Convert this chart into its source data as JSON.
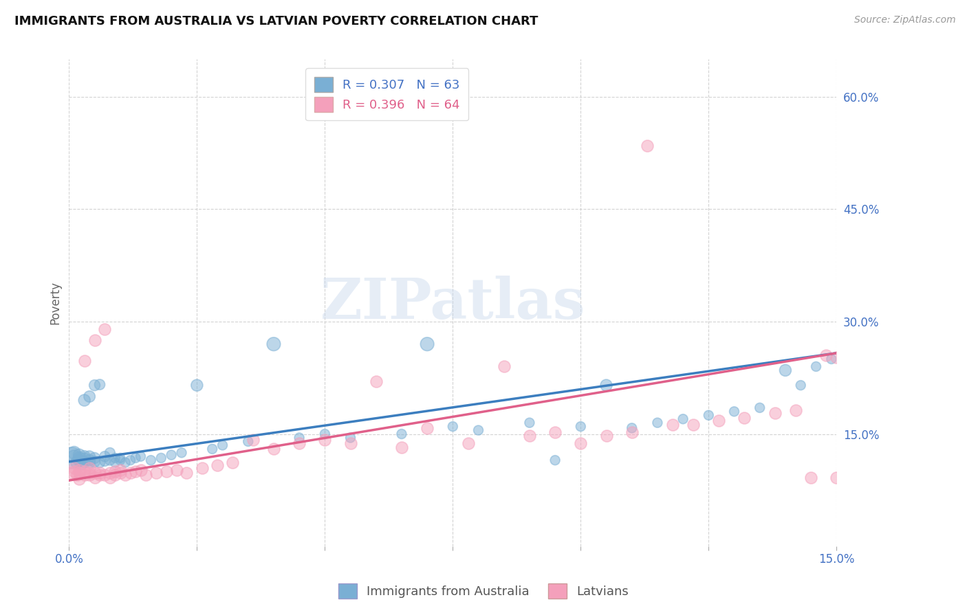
{
  "title": "IMMIGRANTS FROM AUSTRALIA VS LATVIAN POVERTY CORRELATION CHART",
  "source": "Source: ZipAtlas.com",
  "ylabel": "Poverty",
  "xmin": 0.0,
  "xmax": 0.15,
  "ymin": 0.0,
  "ymax": 0.65,
  "yticks": [
    0.15,
    0.3,
    0.45,
    0.6
  ],
  "ytick_labels": [
    "15.0%",
    "30.0%",
    "45.0%",
    "60.0%"
  ],
  "xticks": [
    0.0,
    0.15
  ],
  "xtick_labels": [
    "0.0%",
    "15.0%"
  ],
  "blue_R": 0.307,
  "blue_N": 63,
  "pink_R": 0.396,
  "pink_N": 64,
  "blue_color": "#7aafd4",
  "pink_color": "#f4a0bb",
  "blue_line_color": "#3c7ebf",
  "pink_line_color": "#e0608a",
  "blue_legend_color": "#4472c4",
  "watermark": "ZIPatlas",
  "blue_scatter_x": [
    0.0005,
    0.001,
    0.001,
    0.0015,
    0.002,
    0.002,
    0.002,
    0.0025,
    0.003,
    0.003,
    0.003,
    0.003,
    0.004,
    0.004,
    0.004,
    0.004,
    0.005,
    0.005,
    0.005,
    0.006,
    0.006,
    0.007,
    0.007,
    0.008,
    0.008,
    0.009,
    0.009,
    0.01,
    0.01,
    0.011,
    0.012,
    0.013,
    0.014,
    0.016,
    0.018,
    0.02,
    0.022,
    0.025,
    0.028,
    0.03,
    0.035,
    0.04,
    0.045,
    0.05,
    0.055,
    0.065,
    0.07,
    0.075,
    0.08,
    0.09,
    0.095,
    0.1,
    0.105,
    0.11,
    0.115,
    0.12,
    0.125,
    0.13,
    0.135,
    0.14,
    0.143,
    0.146,
    0.149
  ],
  "blue_scatter_y": [
    0.118,
    0.12,
    0.125,
    0.112,
    0.115,
    0.118,
    0.122,
    0.11,
    0.113,
    0.117,
    0.12,
    0.195,
    0.112,
    0.115,
    0.12,
    0.2,
    0.113,
    0.118,
    0.215,
    0.112,
    0.216,
    0.114,
    0.12,
    0.115,
    0.125,
    0.112,
    0.118,
    0.115,
    0.118,
    0.112,
    0.115,
    0.118,
    0.12,
    0.115,
    0.118,
    0.122,
    0.125,
    0.215,
    0.13,
    0.135,
    0.14,
    0.27,
    0.145,
    0.15,
    0.145,
    0.15,
    0.27,
    0.16,
    0.155,
    0.165,
    0.115,
    0.16,
    0.215,
    0.158,
    0.165,
    0.17,
    0.175,
    0.18,
    0.185,
    0.235,
    0.215,
    0.24,
    0.25
  ],
  "blue_scatter_size": [
    500,
    180,
    180,
    160,
    160,
    160,
    160,
    150,
    150,
    150,
    150,
    150,
    140,
    140,
    140,
    140,
    130,
    130,
    130,
    120,
    120,
    120,
    120,
    110,
    110,
    100,
    100,
    100,
    100,
    100,
    100,
    100,
    100,
    100,
    100,
    100,
    100,
    150,
    100,
    100,
    100,
    200,
    100,
    100,
    100,
    100,
    200,
    100,
    100,
    100,
    100,
    100,
    150,
    100,
    100,
    100,
    100,
    100,
    100,
    150,
    100,
    100,
    100
  ],
  "pink_scatter_x": [
    0.0005,
    0.001,
    0.001,
    0.0015,
    0.002,
    0.002,
    0.002,
    0.003,
    0.003,
    0.003,
    0.004,
    0.004,
    0.004,
    0.005,
    0.005,
    0.005,
    0.006,
    0.006,
    0.007,
    0.007,
    0.008,
    0.008,
    0.009,
    0.009,
    0.01,
    0.01,
    0.011,
    0.012,
    0.013,
    0.014,
    0.015,
    0.017,
    0.019,
    0.021,
    0.023,
    0.026,
    0.029,
    0.032,
    0.036,
    0.04,
    0.045,
    0.05,
    0.055,
    0.06,
    0.065,
    0.07,
    0.078,
    0.085,
    0.09,
    0.095,
    0.1,
    0.105,
    0.11,
    0.113,
    0.118,
    0.122,
    0.127,
    0.132,
    0.138,
    0.142,
    0.145,
    0.148,
    0.15,
    0.15
  ],
  "pink_scatter_y": [
    0.098,
    0.1,
    0.105,
    0.095,
    0.098,
    0.102,
    0.09,
    0.095,
    0.1,
    0.248,
    0.095,
    0.098,
    0.105,
    0.092,
    0.098,
    0.275,
    0.095,
    0.098,
    0.095,
    0.29,
    0.092,
    0.098,
    0.095,
    0.1,
    0.098,
    0.102,
    0.095,
    0.098,
    0.1,
    0.102,
    0.095,
    0.098,
    0.1,
    0.102,
    0.098,
    0.105,
    0.108,
    0.112,
    0.142,
    0.13,
    0.138,
    0.142,
    0.138,
    0.22,
    0.132,
    0.158,
    0.138,
    0.24,
    0.148,
    0.152,
    0.138,
    0.148,
    0.152,
    0.535,
    0.162,
    0.162,
    0.168,
    0.172,
    0.178,
    0.182,
    0.092,
    0.255,
    0.092,
    0.252
  ]
}
